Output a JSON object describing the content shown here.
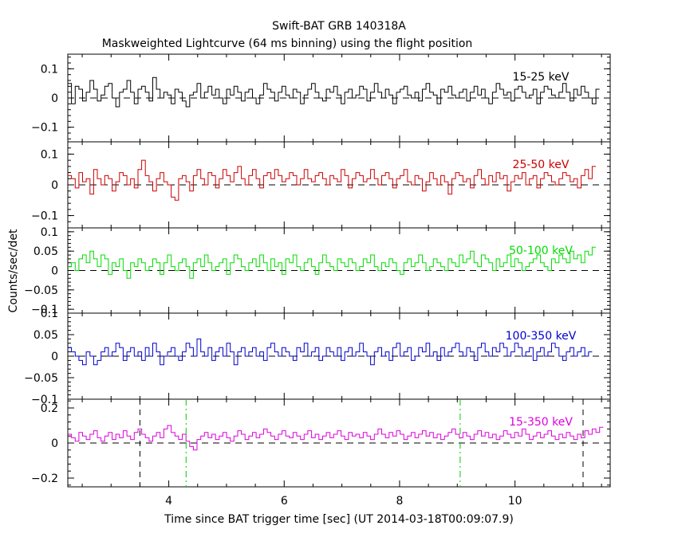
{
  "chart_data": {
    "type": "line",
    "title": "Swift-BAT GRB 140318A",
    "subtitle": "Maskweighted Lightcurve (64 ms binning) using the flight position",
    "xlabel": "Time since BAT trigger time [sec] (UT 2014-03-18T00:09:07.9)",
    "ylabel": "Counts/sec/det",
    "xlim": [
      2.25,
      11.65
    ],
    "x_ticks": [
      4,
      6,
      8,
      10
    ],
    "bin_width_sec": 0.064,
    "vertical_markers": [
      {
        "x": 3.5,
        "style": "dashed",
        "color": "#000000"
      },
      {
        "x": 4.3,
        "style": "dash-dot",
        "color": "#00cc00"
      },
      {
        "x": 9.05,
        "style": "dash-dot",
        "color": "#00cc00"
      },
      {
        "x": 11.18,
        "style": "dashed",
        "color": "#000000"
      }
    ],
    "panels": [
      {
        "name": "15-25 keV",
        "color": "#000000",
        "ylim": [
          -0.15,
          0.15
        ],
        "y_ticks": [
          0.1,
          0,
          -0.1
        ],
        "y_tick_labels": [
          "0.1",
          "0",
          "−0.1"
        ],
        "values": [
          0.05,
          -0.02,
          0.04,
          0.03,
          -0.01,
          0.02,
          0.06,
          0.03,
          -0.01,
          0.01,
          0.04,
          0.05,
          0.0,
          -0.03,
          0.02,
          0.03,
          0.06,
          0.02,
          -0.02,
          0.03,
          0.04,
          0.02,
          -0.01,
          0.07,
          0.03,
          0.0,
          0.02,
          0.01,
          -0.02,
          0.03,
          0.02,
          -0.01,
          -0.03,
          0.01,
          0.02,
          0.05,
          0.0,
          0.02,
          0.04,
          0.01,
          0.03,
          0.0,
          -0.02,
          0.03,
          0.01,
          0.04,
          0.02,
          -0.01,
          0.02,
          0.03,
          0.0,
          -0.02,
          0.01,
          0.05,
          0.03,
          0.02,
          -0.01,
          0.02,
          0.04,
          0.01,
          0.0,
          0.03,
          0.02,
          -0.02,
          0.01,
          0.03,
          0.05,
          0.02,
          0.0,
          -0.01,
          0.03,
          0.02,
          0.04,
          0.01,
          -0.02,
          0.02,
          0.03,
          0.0,
          0.01,
          0.04,
          0.03,
          -0.01,
          0.02,
          0.05,
          0.02,
          0.0,
          0.03,
          0.01,
          -0.02,
          0.02,
          0.03,
          0.04,
          0.01,
          0.0,
          0.02,
          -0.01,
          0.03,
          0.05,
          0.02,
          0.01,
          -0.02,
          0.03,
          0.02,
          0.04,
          0.01,
          0.0,
          0.02,
          0.03,
          -0.01,
          0.02,
          0.04,
          0.01,
          0.03,
          0.0,
          -0.02,
          0.02,
          0.05,
          0.03,
          0.01,
          0.02,
          -0.01,
          0.03,
          0.04,
          0.02,
          0.0,
          0.01,
          0.03,
          -0.02,
          0.02,
          0.04,
          0.03,
          0.01,
          0.0,
          0.02,
          0.05,
          0.02,
          -0.01,
          0.03,
          0.01,
          0.04,
          0.02,
          0.0,
          -0.02,
          0.03
        ]
      },
      {
        "name": "25-50 keV",
        "color": "#cc0000",
        "ylim": [
          -0.14,
          0.14
        ],
        "y_ticks": [
          0.1,
          0,
          -0.1
        ],
        "y_tick_labels": [
          "0.1",
          "0",
          "−0.1"
        ],
        "values": [
          0.03,
          0.02,
          -0.01,
          0.04,
          0.01,
          0.02,
          -0.03,
          0.05,
          0.02,
          0.0,
          0.03,
          0.02,
          -0.02,
          0.01,
          0.04,
          0.03,
          0.0,
          0.02,
          -0.01,
          0.05,
          0.08,
          0.03,
          0.01,
          -0.02,
          0.02,
          0.04,
          0.01,
          0.0,
          -0.04,
          -0.05,
          0.02,
          0.03,
          0.01,
          -0.02,
          0.03,
          0.05,
          0.02,
          0.0,
          0.04,
          0.03,
          -0.01,
          0.02,
          0.05,
          0.03,
          0.01,
          0.04,
          0.06,
          0.02,
          0.0,
          0.03,
          0.05,
          0.02,
          -0.01,
          0.03,
          0.04,
          0.02,
          0.05,
          0.03,
          0.01,
          0.02,
          0.04,
          0.03,
          0.0,
          0.02,
          0.05,
          0.02,
          0.01,
          0.03,
          0.04,
          0.02,
          0.0,
          0.03,
          0.02,
          0.01,
          0.05,
          0.03,
          -0.01,
          0.02,
          0.04,
          0.03,
          0.01,
          0.02,
          0.05,
          0.02,
          0.0,
          0.03,
          0.04,
          0.02,
          -0.01,
          0.02,
          0.03,
          0.05,
          0.01,
          0.0,
          0.03,
          0.02,
          -0.02,
          0.01,
          0.04,
          0.02,
          0.0,
          0.03,
          0.01,
          -0.03,
          0.02,
          0.04,
          0.03,
          0.01,
          0.02,
          -0.01,
          0.03,
          0.05,
          0.02,
          0.0,
          0.03,
          0.01,
          0.04,
          0.02,
          0.03,
          -0.02,
          0.01,
          0.03,
          0.02,
          0.04,
          0.0,
          0.02,
          0.03,
          -0.01,
          0.02,
          0.04,
          0.03,
          0.01,
          0.0,
          0.02,
          0.04,
          0.03,
          0.01,
          0.02,
          -0.01,
          0.03,
          0.05,
          0.02,
          0.06
        ]
      },
      {
        "name": "50-100 keV",
        "color": "#00dd00",
        "ylim": [
          -0.11,
          0.11
        ],
        "y_ticks": [
          0.1,
          0.05,
          0,
          -0.05,
          -0.1
        ],
        "y_tick_labels": [
          "0.1",
          "0.05",
          "0",
          "−0.05",
          "−0.1"
        ],
        "values": [
          0.01,
          0.02,
          0.0,
          0.03,
          0.04,
          0.02,
          0.05,
          0.03,
          0.01,
          0.04,
          0.03,
          -0.01,
          0.02,
          0.01,
          0.03,
          0.0,
          -0.02,
          0.02,
          0.01,
          0.03,
          0.02,
          0.0,
          0.01,
          0.03,
          0.02,
          -0.01,
          0.02,
          0.04,
          0.01,
          0.0,
          0.02,
          0.03,
          0.01,
          -0.02,
          0.02,
          0.03,
          0.01,
          0.04,
          0.02,
          0.0,
          0.01,
          0.02,
          0.03,
          -0.01,
          0.02,
          0.04,
          0.03,
          0.01,
          0.0,
          0.02,
          0.03,
          0.01,
          0.04,
          0.02,
          0.0,
          0.03,
          0.01,
          0.02,
          -0.01,
          0.03,
          0.02,
          0.04,
          0.01,
          0.0,
          0.02,
          0.03,
          0.01,
          -0.01,
          0.02,
          0.04,
          0.02,
          0.01,
          0.0,
          0.03,
          0.02,
          0.01,
          0.03,
          0.02,
          0.0,
          0.01,
          0.03,
          0.02,
          0.04,
          0.01,
          0.0,
          0.02,
          0.01,
          0.03,
          0.02,
          0.0,
          -0.01,
          0.02,
          0.03,
          0.01,
          0.02,
          0.04,
          0.02,
          0.0,
          0.01,
          0.03,
          0.02,
          0.01,
          0.0,
          0.03,
          0.02,
          0.01,
          0.04,
          0.02,
          0.03,
          0.05,
          0.02,
          0.01,
          0.04,
          0.03,
          0.02,
          0.0,
          0.03,
          0.01,
          0.02,
          0.04,
          0.01,
          0.03,
          0.02,
          0.0,
          0.01,
          0.02,
          0.03,
          0.04,
          0.02,
          0.01,
          0.0,
          0.03,
          0.02,
          0.04,
          0.03,
          0.02,
          0.05,
          0.03,
          0.04,
          0.02,
          0.05,
          0.04,
          0.06
        ]
      },
      {
        "name": "100-350 keV",
        "color": "#0000cc",
        "ylim": [
          -0.1,
          0.1
        ],
        "y_ticks": [
          0.1,
          0.05,
          0,
          -0.05,
          -0.1
        ],
        "y_tick_labels": [
          "0.1",
          "0.05",
          "0",
          "−0.05",
          "−0.1"
        ],
        "values": [
          0.02,
          0.01,
          0.0,
          -0.01,
          -0.02,
          0.01,
          0.0,
          -0.02,
          -0.01,
          0.01,
          0.02,
          0.0,
          0.01,
          0.03,
          0.02,
          -0.01,
          0.01,
          0.02,
          0.0,
          0.01,
          -0.01,
          0.02,
          0.0,
          0.03,
          0.01,
          -0.02,
          0.0,
          0.01,
          0.02,
          0.0,
          -0.01,
          0.01,
          0.03,
          0.02,
          0.0,
          0.04,
          0.01,
          0.0,
          0.02,
          -0.01,
          0.01,
          0.02,
          0.0,
          0.03,
          0.01,
          -0.02,
          0.01,
          0.02,
          0.0,
          0.01,
          0.02,
          0.0,
          0.01,
          -0.01,
          0.02,
          0.03,
          0.01,
          0.0,
          0.02,
          0.01,
          0.0,
          -0.01,
          0.02,
          0.01,
          0.03,
          0.0,
          0.01,
          0.02,
          -0.01,
          0.0,
          0.02,
          0.01,
          0.0,
          0.02,
          -0.01,
          0.01,
          0.02,
          0.0,
          0.01,
          0.03,
          0.01,
          0.0,
          -0.02,
          0.01,
          0.02,
          0.0,
          0.01,
          -0.01,
          0.02,
          0.03,
          0.0,
          0.01,
          0.02,
          -0.01,
          0.0,
          0.02,
          0.01,
          0.03,
          0.0,
          0.01,
          -0.01,
          0.02,
          0.0,
          0.01,
          0.02,
          0.03,
          0.01,
          0.0,
          0.02,
          0.01,
          -0.01,
          0.02,
          0.03,
          0.01,
          0.0,
          0.02,
          0.01,
          0.03,
          0.02,
          0.0,
          0.01,
          0.03,
          0.02,
          0.0,
          0.01,
          0.02,
          -0.01,
          0.01,
          0.02,
          0.0,
          0.01,
          0.03,
          0.02,
          0.0,
          -0.01,
          0.01,
          0.02,
          0.0,
          0.01,
          0.02,
          0.0,
          0.01
        ]
      },
      {
        "name": "15-350 keV",
        "color": "#dd00dd",
        "ylim": [
          -0.25,
          0.25
        ],
        "y_ticks": [
          0.2,
          0,
          -0.2
        ],
        "y_tick_labels": [
          "0.2",
          "0",
          "−0.2"
        ],
        "values": [
          0.05,
          0.03,
          0.01,
          0.06,
          0.04,
          0.02,
          0.05,
          0.07,
          0.03,
          0.01,
          0.04,
          0.06,
          0.02,
          0.05,
          0.03,
          0.07,
          0.04,
          0.02,
          0.06,
          0.08,
          0.05,
          0.03,
          0.01,
          0.04,
          0.06,
          0.03,
          0.08,
          0.1,
          0.06,
          0.04,
          0.02,
          0.05,
          0.01,
          -0.02,
          -0.04,
          0.02,
          0.04,
          0.06,
          0.03,
          0.05,
          0.02,
          0.04,
          0.06,
          0.03,
          0.01,
          0.04,
          0.07,
          0.05,
          0.02,
          0.04,
          0.06,
          0.03,
          0.05,
          0.08,
          0.06,
          0.04,
          0.02,
          0.05,
          0.07,
          0.04,
          0.03,
          0.06,
          0.04,
          0.02,
          0.05,
          0.07,
          0.03,
          0.05,
          0.02,
          0.04,
          0.06,
          0.03,
          0.05,
          0.07,
          0.04,
          0.02,
          0.06,
          0.04,
          0.05,
          0.03,
          0.06,
          0.04,
          0.02,
          0.05,
          0.08,
          0.05,
          0.03,
          0.06,
          0.04,
          0.07,
          0.05,
          0.02,
          0.04,
          0.06,
          0.03,
          0.05,
          0.07,
          0.04,
          0.06,
          0.03,
          0.05,
          0.02,
          0.04,
          0.06,
          0.08,
          0.05,
          0.03,
          0.06,
          0.04,
          0.02,
          0.05,
          0.07,
          0.04,
          0.06,
          0.03,
          0.05,
          0.02,
          0.04,
          0.07,
          0.05,
          0.03,
          0.06,
          0.04,
          0.08,
          0.05,
          0.02,
          0.04,
          0.06,
          0.03,
          0.05,
          0.07,
          0.04,
          0.02,
          0.05,
          0.03,
          0.06,
          0.04,
          0.02,
          0.05,
          0.03,
          0.07,
          0.05,
          0.08,
          0.06,
          0.09
        ]
      }
    ]
  }
}
